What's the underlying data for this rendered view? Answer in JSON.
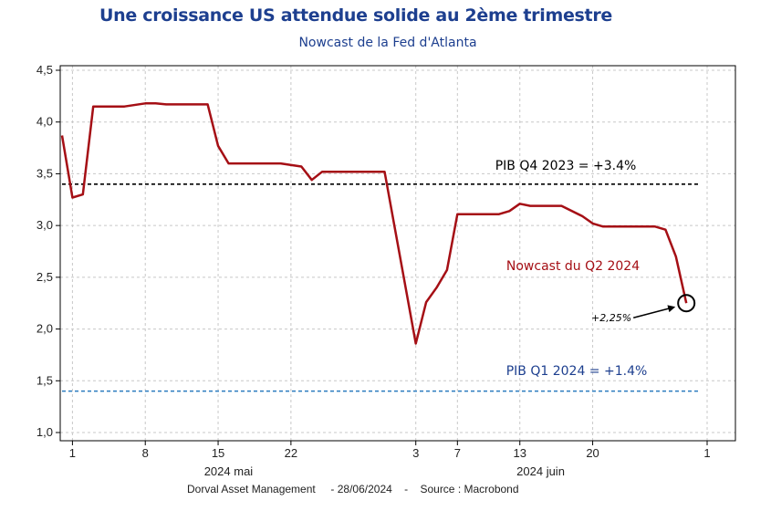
{
  "header": {
    "title": "Une croissance US attendue solide au 2ème trimestre",
    "subtitle": "Nowcast de la Fed d'Atlanta"
  },
  "footer": {
    "source": "Dorval Asset Management     - 28/06/2024    -    Source : Macrobond"
  },
  "colors": {
    "series": "#a50f15",
    "q4_line": "#000000",
    "q1_line": "#2b7bbf",
    "q1_text": "#1d3f8f",
    "grid": "#c8c8c8",
    "title": "#1d3f8f"
  },
  "chart_data": {
    "type": "line",
    "title": "Une croissance US attendue solide au 2ème trimestre",
    "subtitle": "Nowcast de la Fed d'Atlanta",
    "xlabel": "",
    "ylabel": "",
    "ylim": [
      1.0,
      4.5
    ],
    "xlim": [
      "2024-04-30",
      "2024-07-01"
    ],
    "grid": true,
    "y_ticks": [
      1.0,
      1.5,
      2.0,
      2.5,
      3.0,
      3.5,
      4.0,
      4.5
    ],
    "y_tick_labels": [
      "1,0",
      "1,5",
      "2,0",
      "2,5",
      "3,0",
      "3,5",
      "4,0",
      "4,5"
    ],
    "x_ticks": [
      {
        "date": "2024-05-01",
        "label": "1"
      },
      {
        "date": "2024-05-08",
        "label": "8"
      },
      {
        "date": "2024-05-15",
        "label": "15"
      },
      {
        "date": "2024-05-22",
        "label": "22"
      },
      {
        "date": "2024-06-03",
        "label": "3"
      },
      {
        "date": "2024-06-07",
        "label": "7"
      },
      {
        "date": "2024-06-13",
        "label": "13"
      },
      {
        "date": "2024-06-20",
        "label": "20"
      },
      {
        "date": "2024-07-01",
        "label": "1"
      }
    ],
    "x_group_labels": [
      {
        "date": "2024-05-16",
        "label": "2024 mai"
      },
      {
        "date": "2024-06-15",
        "label": "2024 juin"
      }
    ],
    "series": [
      {
        "name": "Nowcast du Q2 2024",
        "points": [
          {
            "x": "2024-04-30",
            "y": 3.87
          },
          {
            "x": "2024-05-01",
            "y": 3.27
          },
          {
            "x": "2024-05-02",
            "y": 3.3
          },
          {
            "x": "2024-05-03",
            "y": 4.15
          },
          {
            "x": "2024-05-06",
            "y": 4.15
          },
          {
            "x": "2024-05-08",
            "y": 4.18
          },
          {
            "x": "2024-05-09",
            "y": 4.18
          },
          {
            "x": "2024-05-10",
            "y": 4.17
          },
          {
            "x": "2024-05-14",
            "y": 4.17
          },
          {
            "x": "2024-05-15",
            "y": 3.77
          },
          {
            "x": "2024-05-16",
            "y": 3.6
          },
          {
            "x": "2024-05-21",
            "y": 3.6
          },
          {
            "x": "2024-05-23",
            "y": 3.57
          },
          {
            "x": "2024-05-24",
            "y": 3.44
          },
          {
            "x": "2024-05-25",
            "y": 3.52
          },
          {
            "x": "2024-05-31",
            "y": 3.52
          },
          {
            "x": "2024-06-03",
            "y": 1.86
          },
          {
            "x": "2024-06-04",
            "y": 2.26
          },
          {
            "x": "2024-06-05",
            "y": 2.4
          },
          {
            "x": "2024-06-06",
            "y": 2.57
          },
          {
            "x": "2024-06-07",
            "y": 3.11
          },
          {
            "x": "2024-06-11",
            "y": 3.11
          },
          {
            "x": "2024-06-12",
            "y": 3.14
          },
          {
            "x": "2024-06-13",
            "y": 3.21
          },
          {
            "x": "2024-06-14",
            "y": 3.19
          },
          {
            "x": "2024-06-17",
            "y": 3.19
          },
          {
            "x": "2024-06-19",
            "y": 3.09
          },
          {
            "x": "2024-06-20",
            "y": 3.02
          },
          {
            "x": "2024-06-21",
            "y": 2.99
          },
          {
            "x": "2024-06-26",
            "y": 2.99
          },
          {
            "x": "2024-06-27",
            "y": 2.96
          },
          {
            "x": "2024-06-28",
            "y": 2.7
          },
          {
            "x": "2024-06-29",
            "y": 2.25
          }
        ]
      }
    ],
    "hlines": [
      {
        "y": 3.4,
        "label": "PIB Q4 2023 = +3.4%"
      },
      {
        "y": 1.4,
        "label": "PIB Q1 2024 = +1.4%"
      }
    ],
    "annotations": [
      {
        "text": "Nowcast du Q2 2024"
      },
      {
        "text": "+2,25%",
        "x": "2024-06-29",
        "y": 2.25
      }
    ]
  }
}
